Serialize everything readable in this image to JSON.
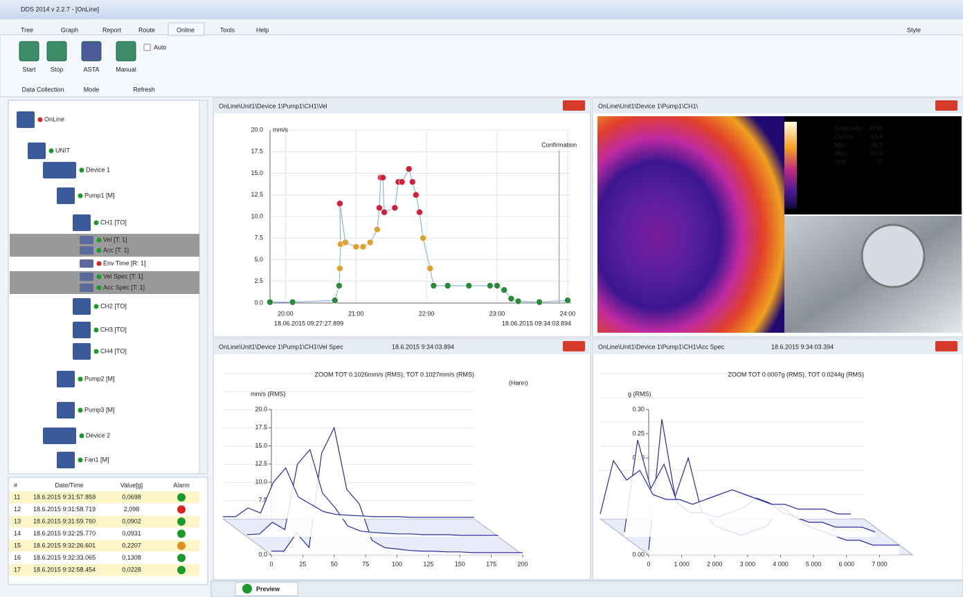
{
  "window": {
    "title": "DDS 2014 v 2.2.7 - [OnLine]",
    "style_label": "Style"
  },
  "menu": [
    "Tree",
    "Graph",
    "Report",
    "Route",
    "Online",
    "Tools",
    "Help"
  ],
  "ribbon": {
    "buttons": [
      "Start",
      "Stop",
      "ASTA",
      "Manual"
    ],
    "checkbox": "Auto",
    "groups": [
      "Data Collection",
      "Mode",
      "Refresh"
    ]
  },
  "tree": [
    {
      "label": "OnLine",
      "status_color": "#d22"
    },
    {
      "label": "UNIT",
      "status_color": "#1a9a2a"
    },
    {
      "label": "Device 1",
      "status_color": "#1a9a2a"
    },
    {
      "label": "Pump1 [M]",
      "status_color": "#1a9a2a"
    },
    {
      "label": "CH1 [TO]",
      "status_color": "#1a9a2a"
    },
    {
      "label": "Vel [T: 1]",
      "status_color": "#1a9a2a"
    },
    {
      "label": "Acc [T: 1]",
      "status_color": "#1a9a2a"
    },
    {
      "label": "Env Time [R: 1]",
      "status_color": "#d22"
    },
    {
      "label": "Vel Spec [T: 1]",
      "status_color": "#1a9a2a"
    },
    {
      "label": "Acc Spec [T: 1]",
      "status_color": "#1a9a2a"
    },
    {
      "label": "CH2 [TO]",
      "status_color": "#1a9a2a"
    },
    {
      "label": "CH3 [TO]",
      "status_color": "#1a9a2a"
    },
    {
      "label": "CH4 [TO]",
      "status_color": "#1a9a2a"
    },
    {
      "label": "Pump2 [M]",
      "status_color": "#1a9a2a"
    },
    {
      "label": "Pump3 [M]",
      "status_color": "#1a9a2a"
    },
    {
      "label": "Device 2",
      "status_color": "#1a9a2a"
    },
    {
      "label": "Fan1 [M]",
      "status_color": "#1a9a2a"
    }
  ],
  "alarm_table": {
    "headers": [
      "#",
      "Date/Time",
      "Value[g]",
      "Alarm"
    ],
    "rows": [
      [
        "11",
        "18.6.2015 9:31:57.859",
        "0,0698"
      ],
      [
        "12",
        "18.6.2015 9:31:58.719",
        "2,098"
      ],
      [
        "13",
        "18.6.2015 9:31:59.760",
        "0,0902"
      ],
      [
        "14",
        "18.6.2015 9:32:25.770",
        "0,0931"
      ],
      [
        "15",
        "18.6.2015 9:32:26.601",
        "0,2207"
      ],
      [
        "16",
        "18.6.2015 9:32:33.065",
        "0,1308"
      ],
      [
        "17",
        "18.6.2015 9:32:58.454",
        "0,0228"
      ]
    ],
    "alarm_colors": [
      "#1a9a2a",
      "#d22",
      "#1a9a2a",
      "#1a9a2a",
      "#e09020",
      "#1a9a2a",
      "#1a9a2a"
    ]
  },
  "charts": {
    "trend": {
      "type": "scatter",
      "title": "OnLine\\Unit1\\Device 1\\Pump1\\CH1\\Vel",
      "unit": "mm/s",
      "start_label": "18.06.2015 09:27:27.899",
      "end_label": "18.06.2015 09:34:03.894",
      "annotation": {
        "text": "Confirmation",
        "x": 23.88
      },
      "x": [
        19.78,
        20.1,
        20.7,
        20.76,
        20.77,
        20.78,
        20.77,
        20.85,
        21.0,
        21.1,
        21.2,
        21.3,
        21.33,
        21.35,
        21.38,
        21.4,
        21.55,
        21.6,
        21.65,
        21.75,
        21.8,
        21.85,
        21.9,
        21.95,
        22.05,
        22.1,
        22.3,
        22.6,
        22.9,
        23.0,
        23.1,
        23.2,
        23.3,
        23.6,
        24.0
      ],
      "values": [
        0.1,
        0.1,
        0.3,
        2,
        4,
        6.8,
        11.5,
        7,
        6.5,
        6.5,
        7,
        8.5,
        11,
        14.5,
        14.5,
        10.5,
        11,
        14,
        14,
        15.5,
        14,
        12.5,
        10.5,
        7.5,
        4,
        2,
        2,
        2,
        2,
        2,
        1.5,
        0.5,
        0.2,
        0.1,
        0.3
      ],
      "line_color": "#8fb4e0",
      "marker_colors": [
        {
          "max": 3,
          "color": "#2a8a3a"
        },
        {
          "max": 10,
          "color": "#e0a030"
        },
        {
          "max": 20,
          "color": "#d0203a"
        }
      ],
      "xlim": [
        19.78,
        24.05
      ],
      "ylim": [
        0,
        20
      ],
      "xticks": [
        {
          "value": 20,
          "label": "20:00"
        },
        {
          "value": 21,
          "label": "21:00"
        },
        {
          "value": 22,
          "label": "22:00"
        },
        {
          "value": 23,
          "label": "23:00"
        },
        {
          "value": 24,
          "label": "24:00"
        }
      ],
      "yticks": [
        {
          "value": 0,
          "label": "0.0"
        },
        2.5,
        {
          "value": 5,
          "label": "5.0"
        },
        7.5,
        {
          "value": 10,
          "label": "10.0"
        },
        12.5,
        {
          "value": 15,
          "label": "15.0"
        },
        17.5,
        {
          "value": 20,
          "label": "20.0"
        }
      ],
      "grid": true
    },
    "vel_spec": {
      "type": "waterfall",
      "title": "OnLine\\Unit1\\Device 1\\Pump1\\CH1\\Vel Spec",
      "timestamp": "18.6.2015 9:34:03.894",
      "summary": "ZOOM TOT 0.1026mm/s (RMS), TOT 0.1027mm/s (RMS)",
      "window": "(Hann)",
      "ylabel": "mm/s (RMS)",
      "x": [
        0,
        10,
        20,
        30,
        40,
        50,
        60,
        70,
        80,
        90,
        100,
        110,
        120,
        130,
        140,
        150,
        160,
        170,
        180,
        190,
        200
      ],
      "series": [
        {
          "color": "#2a2aa0",
          "values": [
            0.3,
            0.3,
            1.5,
            0.8,
            5,
            7,
            3,
            2,
            1,
            0.6,
            0.5,
            0.4,
            0.3,
            0.3,
            0.3,
            0.2,
            0.2,
            0.2,
            0.2,
            0.2,
            0.2
          ]
        },
        {
          "color": "#2a2aa0",
          "values": [
            0.3,
            0.4,
            2,
            1,
            10,
            12,
            6,
            4,
            1.5,
            0.8,
            0.6,
            0.5,
            0.4,
            0.4,
            0.3,
            0.3,
            0.3,
            0.2,
            0.2,
            0.2,
            0.2
          ]
        },
        {
          "color": "#2a2aa0",
          "values": [
            0.5,
            0.5,
            3,
            1,
            14,
            17.5,
            9,
            7,
            2,
            1,
            0.8,
            0.6,
            0.5,
            0.5,
            0.4,
            0.4,
            0.3,
            0.3,
            0.3,
            0.3,
            0.3
          ]
        }
      ],
      "xlim": [
        0,
        200
      ],
      "ylim": [
        0,
        20
      ],
      "xticks": [
        0,
        25,
        50,
        75,
        100,
        125,
        150,
        175,
        200
      ],
      "yticks": [
        {
          "value": 0,
          "label": "0.0"
        },
        2.5,
        {
          "value": 5,
          "label": "5.0"
        },
        7.5,
        {
          "value": 10,
          "label": "10.0"
        },
        12.5,
        {
          "value": 15,
          "label": "15.0"
        },
        17.5,
        {
          "value": 20,
          "label": "20.0"
        }
      ]
    },
    "acc_spec": {
      "type": "waterfall",
      "title": "OnLine\\Unit1\\Device 1\\Pump1\\CH1\\Acc Spec",
      "timestamp": "18.6.2015 9:34:03.394",
      "summary": "ZOOM TOT 0.0007g (RMS), TOT 0.0244g (RMS)",
      "ylabel": "g (RMS)",
      "x": [
        0,
        400,
        800,
        1200,
        1600,
        2000,
        2400,
        2800,
        3200,
        3600,
        4000,
        4400,
        4800,
        5200,
        5600,
        6000,
        6400,
        6800,
        7200,
        7600
      ],
      "series": [
        {
          "color": "#2a2aa0",
          "values": [
            0.01,
            0.12,
            0.08,
            0.1,
            0.05,
            0.04,
            0.04,
            0.03,
            0.04,
            0.05,
            0.06,
            0.05,
            0.04,
            0.03,
            0.03,
            0.02,
            0.02,
            0.02,
            0.01,
            0.01
          ]
        },
        {
          "color": "#2a2aa0",
          "values": [
            0.01,
            0.2,
            0.1,
            0.15,
            0.07,
            0.05,
            0.05,
            0.04,
            0.05,
            0.06,
            0.08,
            0.07,
            0.05,
            0.04,
            0.03,
            0.03,
            0.02,
            0.02,
            0.02,
            0.01
          ]
        },
        {
          "color": "#2a2aa0",
          "values": [
            0.01,
            0.28,
            0.12,
            0.2,
            0.09,
            0.06,
            0.05,
            0.04,
            0.05,
            0.06,
            0.1,
            0.08,
            0.06,
            0.05,
            0.04,
            0.03,
            0.03,
            0.02,
            0.02,
            0.02
          ]
        }
      ],
      "xlim": [
        0,
        8000
      ],
      "ylim": [
        0,
        0.3
      ],
      "xticks": [
        0,
        {
          "value": 1000,
          "label": "1 000"
        },
        {
          "value": 2000,
          "label": "2 000"
        },
        {
          "value": 3000,
          "label": "3 000"
        },
        {
          "value": 4000,
          "label": "4 000"
        },
        {
          "value": 5000,
          "label": "5 000"
        },
        {
          "value": 6000,
          "label": "6 000"
        },
        {
          "value": 7000,
          "label": "7 000"
        }
      ],
      "yticks": [
        {
          "value": 0,
          "label": "0.00"
        },
        0.05,
        {
          "value": 0.1,
          "label": "0.10"
        },
        0.15,
        {
          "value": 0.2,
          "label": "0.20"
        },
        0.25,
        {
          "value": 0.3,
          "label": "0.30"
        }
      ]
    }
  },
  "thermal": {
    "title": "OnLine\\Unit1\\Device 1\\Pump1\\CH1\\",
    "readout": [
      [
        "Emissivity:",
        "0.95"
      ],
      [
        "Cursor:",
        "43.4"
      ],
      [
        "Min:",
        "26.3"
      ],
      [
        "Max:",
        "67.0"
      ],
      [
        "Unit:",
        "°C"
      ]
    ]
  },
  "status_bar": {
    "tab": "Preview"
  }
}
